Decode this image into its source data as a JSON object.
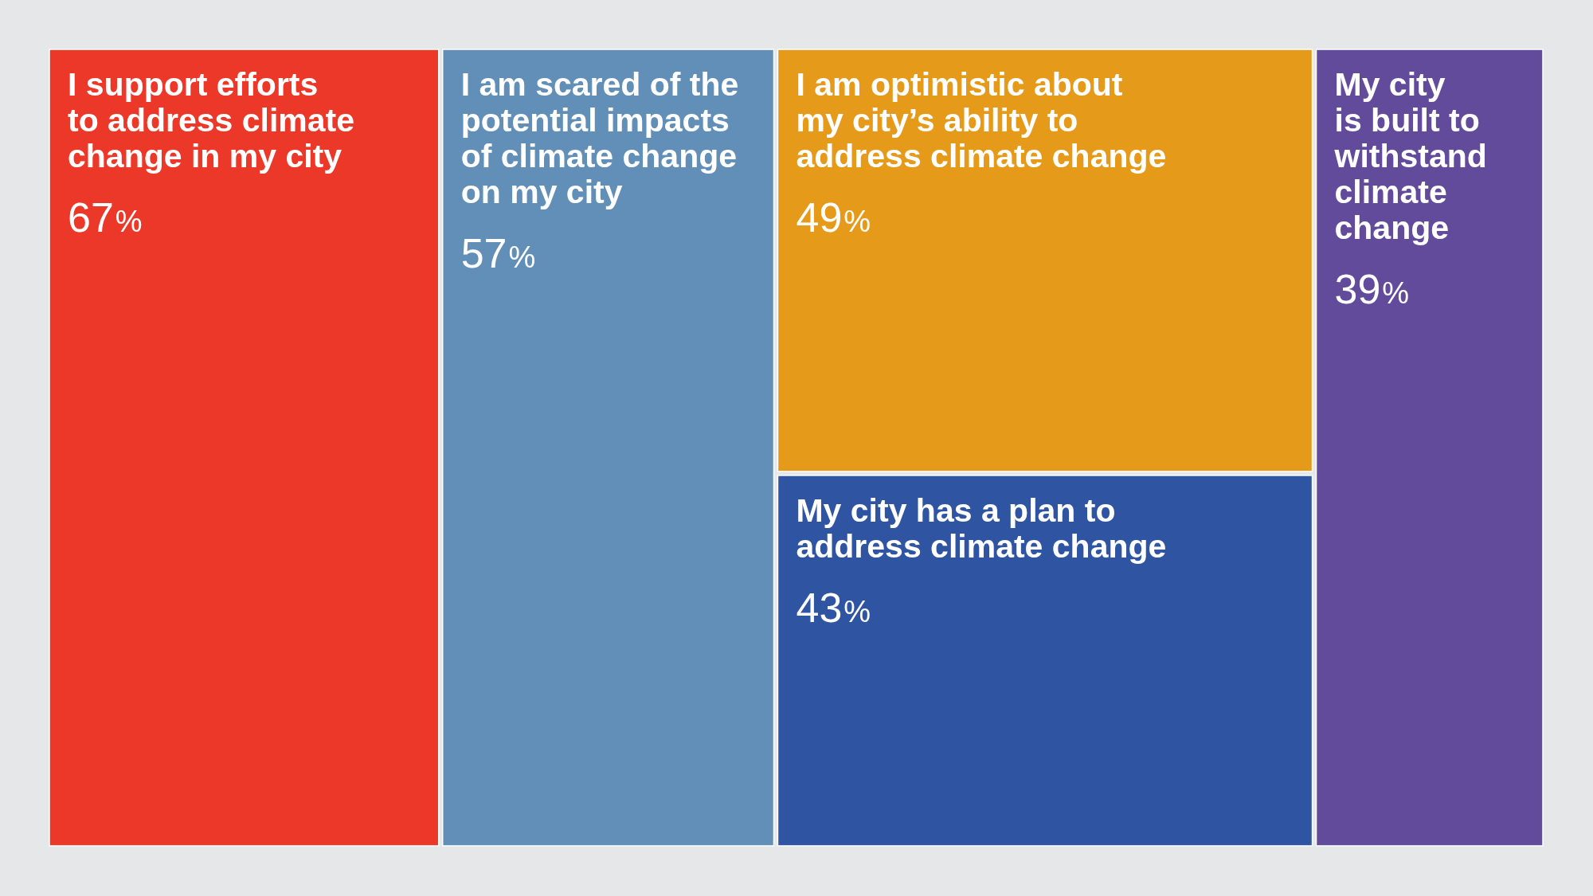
{
  "chart_data": {
    "type": "other",
    "categories": [
      "I support efforts to address climate change in my city",
      "I am scared of the potential impacts of climate change on my city",
      "I am optimistic about my city’s ability to address climate change",
      "My city has a plan to address climate change",
      "My city is built to withstand climate change"
    ],
    "values": [
      67,
      57,
      49,
      43,
      39
    ],
    "colors": [
      "#ec3828",
      "#628fb7",
      "#e69a1a",
      "#2f55a2",
      "#634b9c"
    ],
    "value_labels": [
      "67%",
      "57%",
      "49%",
      "43%",
      "39%"
    ]
  }
}
